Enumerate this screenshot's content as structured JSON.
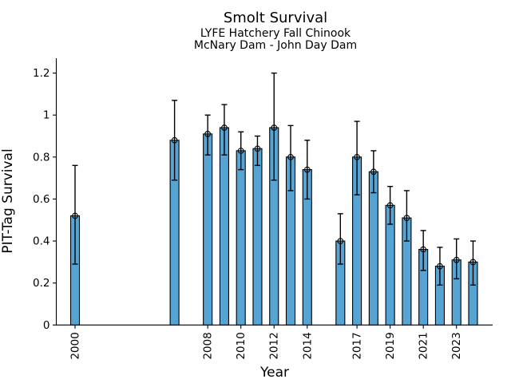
{
  "chart_data": {
    "type": "bar",
    "title": "Smolt Survival",
    "subtitle1": "LYFE Hatchery Fall Chinook",
    "subtitle2": "McNary Dam - John Day Dam",
    "xlabel": "Year",
    "ylabel": "PIT-Tag Survival",
    "grid": false,
    "legend": null,
    "bar_color": "#56a4d4",
    "bar_edge_color": "#000000",
    "errorbar_color": "#000000",
    "xlim": [
      1998.8,
      2025.2
    ],
    "ylim": [
      0,
      1.27
    ],
    "x_ticks": [
      2000,
      2008,
      2010,
      2012,
      2014,
      2017,
      2019,
      2021,
      2023
    ],
    "y_ticks": [
      0,
      0.2,
      0.4,
      0.6,
      0.8,
      1,
      1.2
    ],
    "y_tick_labels": [
      "0",
      "0.2",
      "0.4",
      "0.6",
      "0.8",
      "1",
      "1.2"
    ],
    "series_name": "PIT-Tag Survival with error bars",
    "points": [
      {
        "year": 2000,
        "survival": 0.52,
        "ci_low": 0.29,
        "ci_high": 0.76
      },
      {
        "year": 2006,
        "survival": 0.88,
        "ci_low": 0.69,
        "ci_high": 1.07
      },
      {
        "year": 2008,
        "survival": 0.91,
        "ci_low": 0.81,
        "ci_high": 1.0
      },
      {
        "year": 2009,
        "survival": 0.94,
        "ci_low": 0.81,
        "ci_high": 1.05
      },
      {
        "year": 2010,
        "survival": 0.83,
        "ci_low": 0.74,
        "ci_high": 0.92
      },
      {
        "year": 2011,
        "survival": 0.84,
        "ci_low": 0.76,
        "ci_high": 0.9
      },
      {
        "year": 2012,
        "survival": 0.94,
        "ci_low": 0.69,
        "ci_high": 1.2
      },
      {
        "year": 2013,
        "survival": 0.8,
        "ci_low": 0.64,
        "ci_high": 0.95
      },
      {
        "year": 2014,
        "survival": 0.74,
        "ci_low": 0.6,
        "ci_high": 0.88
      },
      {
        "year": 2016,
        "survival": 0.4,
        "ci_low": 0.29,
        "ci_high": 0.53
      },
      {
        "year": 2017,
        "survival": 0.8,
        "ci_low": 0.62,
        "ci_high": 0.97
      },
      {
        "year": 2018,
        "survival": 0.73,
        "ci_low": 0.63,
        "ci_high": 0.83
      },
      {
        "year": 2019,
        "survival": 0.57,
        "ci_low": 0.48,
        "ci_high": 0.66
      },
      {
        "year": 2020,
        "survival": 0.51,
        "ci_low": 0.4,
        "ci_high": 0.64
      },
      {
        "year": 2021,
        "survival": 0.36,
        "ci_low": 0.26,
        "ci_high": 0.45
      },
      {
        "year": 2022,
        "survival": 0.28,
        "ci_low": 0.19,
        "ci_high": 0.37
      },
      {
        "year": 2023,
        "survival": 0.31,
        "ci_low": 0.22,
        "ci_high": 0.41
      },
      {
        "year": 2024,
        "survival": 0.3,
        "ci_low": 0.19,
        "ci_high": 0.4
      }
    ]
  }
}
